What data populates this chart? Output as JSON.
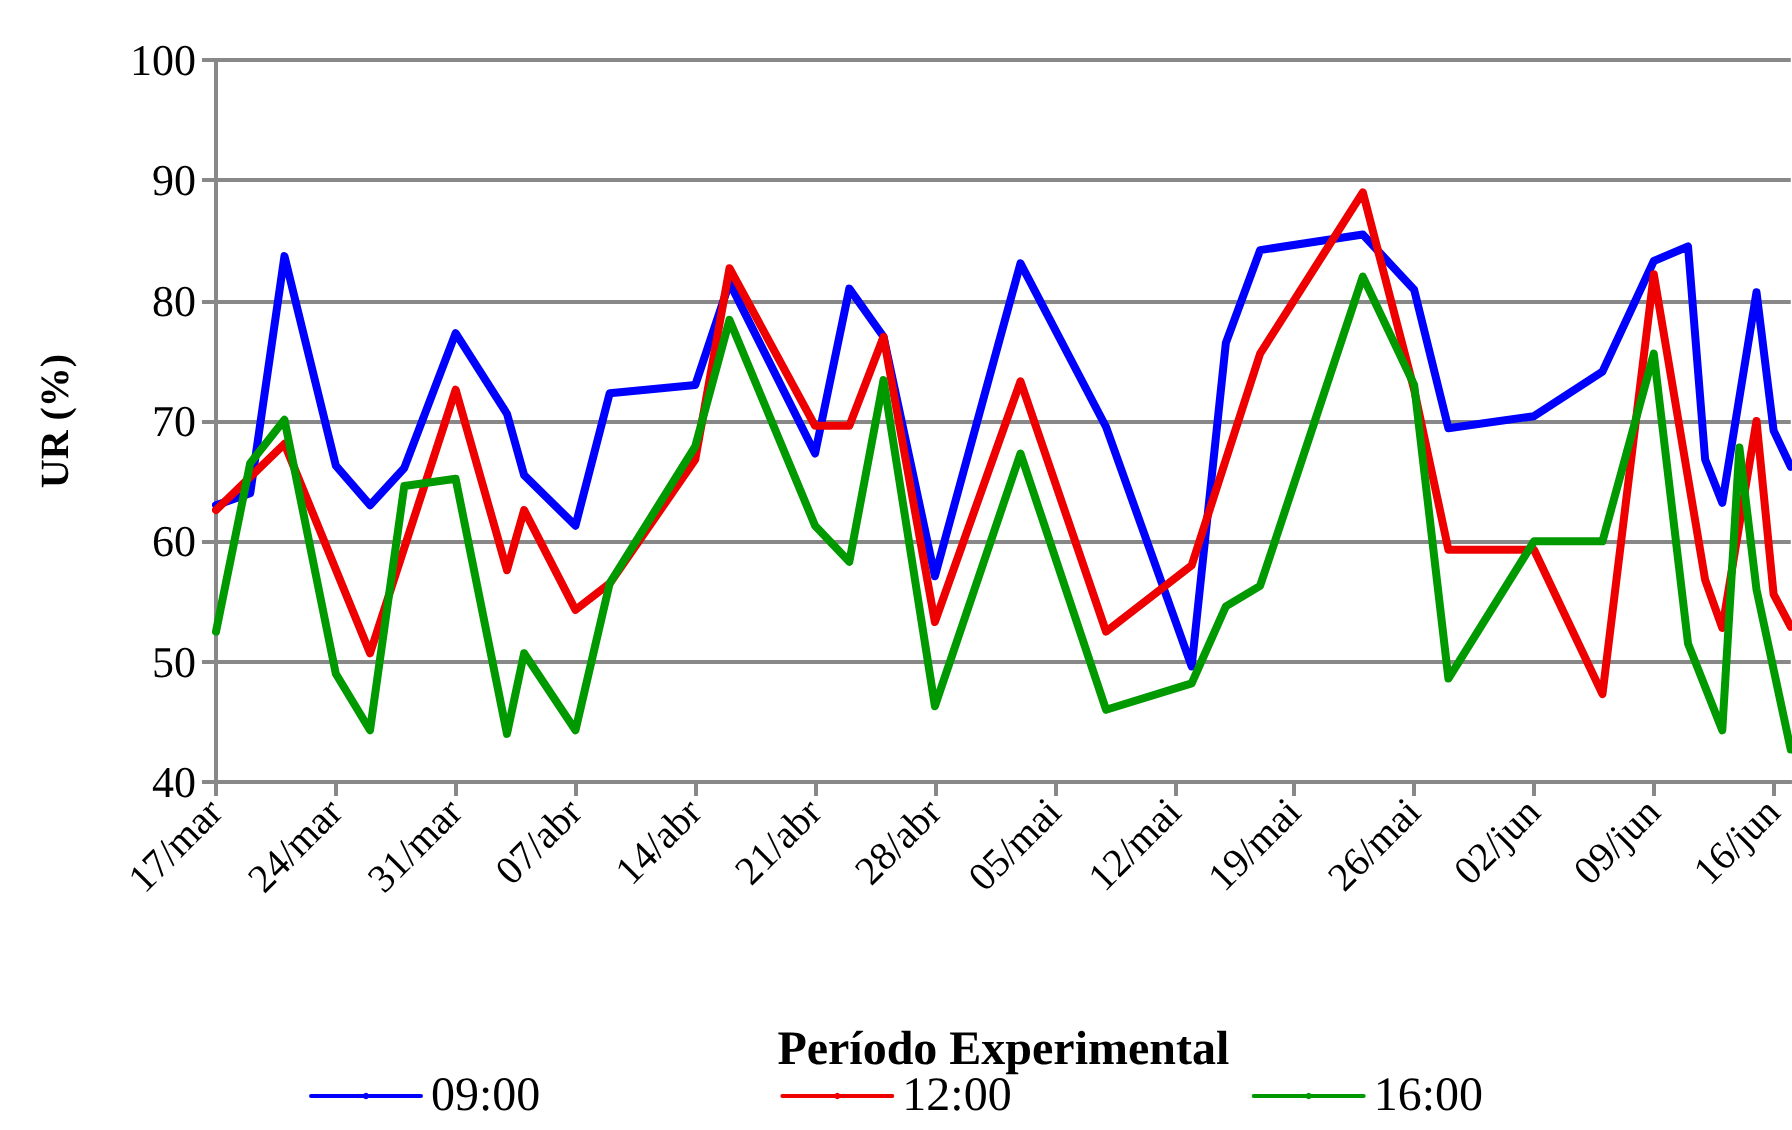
{
  "chart_data": {
    "type": "line",
    "xlabel": "Período Experimental",
    "ylabel": "UR (%)",
    "xlim": [
      "--03-17",
      "--06-17"
    ],
    "xticks": [
      {
        "value": "--03-17",
        "label": "17/mar"
      },
      {
        "value": "--03-24",
        "label": "24/mar"
      },
      {
        "value": "--03-31",
        "label": "31/mar"
      },
      {
        "value": "--04-07",
        "label": "07/abr"
      },
      {
        "value": "--04-14",
        "label": "14/abr"
      },
      {
        "value": "--04-21",
        "label": "21/abr"
      },
      {
        "value": "--04-28",
        "label": "28/abr"
      },
      {
        "value": "--05-05",
        "label": "05/mai"
      },
      {
        "value": "--05-12",
        "label": "12/mai"
      },
      {
        "value": "--05-19",
        "label": "19/mai"
      },
      {
        "value": "--05-26",
        "label": "26/mai"
      },
      {
        "value": "--06-02",
        "label": "02/jun"
      },
      {
        "value": "--06-09",
        "label": "09/jun"
      },
      {
        "value": "--06-16",
        "label": "16/jun"
      }
    ],
    "ylim": [
      40,
      100
    ],
    "yticks": [
      40,
      50,
      60,
      70,
      80,
      90,
      100
    ],
    "grid": "y",
    "legend": "bottom",
    "marker": "none",
    "line_style": "solid",
    "series": [
      {
        "name": "09:00",
        "color": "#0000ff",
        "x": [
          "--03-17",
          "--03-19",
          "--03-21",
          "--03-24",
          "--03-26",
          "--03-28",
          "--03-31",
          "--04-03",
          "--04-04",
          "--04-07",
          "--04-09",
          "--04-14",
          "--04-16",
          "--04-21",
          "--04-23",
          "--04-25",
          "--04-28",
          "--05-03",
          "--05-08",
          "--05-13",
          "--05-15",
          "--05-17",
          "--05-23",
          "--05-26",
          "--05-28",
          "--06-02",
          "--06-06",
          "--06-09",
          "--06-11",
          "--06-12",
          "--06-13",
          "--06-15",
          "--06-16",
          "--06-17"
        ],
        "values": [
          63,
          64,
          83.7,
          66.3,
          63,
          66.1,
          77.3,
          70.6,
          65.5,
          61.3,
          72.3,
          73,
          81.5,
          67.3,
          81,
          77,
          57.1,
          83.1,
          69.5,
          49.6,
          76.5,
          84.2,
          85.5,
          80.9,
          69.4,
          70.4,
          74.1,
          83.3,
          84.5,
          66.8,
          63.2,
          80.7,
          69.2,
          66.2
        ]
      },
      {
        "name": "12:00",
        "color": "#ee0000",
        "x": [
          "--03-17",
          "--03-21",
          "--03-26",
          "--03-31",
          "--04-03",
          "--04-04",
          "--04-07",
          "--04-09",
          "--04-14",
          "--04-16",
          "--04-21",
          "--04-23",
          "--04-25",
          "--04-28",
          "--05-03",
          "--05-08",
          "--05-13",
          "--05-17",
          "--05-23",
          "--05-26",
          "--05-28",
          "--06-02",
          "--06-06",
          "--06-09",
          "--06-12",
          "--06-13",
          "--06-15",
          "--06-16",
          "--06-17"
        ],
        "values": [
          62.6,
          68.1,
          50.7,
          72.6,
          57.6,
          62.6,
          54.3,
          56.5,
          66.8,
          82.7,
          69.6,
          69.6,
          77,
          53.3,
          73.3,
          52.5,
          58,
          75.6,
          89,
          72.6,
          59.3,
          59.3,
          47.3,
          82.2,
          56.8,
          52.8,
          70,
          55.6,
          52.9
        ]
      },
      {
        "name": "16:00",
        "color": "#009900",
        "x": [
          "--03-17",
          "--03-19",
          "--03-21",
          "--03-24",
          "--03-26",
          "--03-28",
          "--03-31",
          "--04-03",
          "--04-04",
          "--04-07",
          "--04-09",
          "--04-14",
          "--04-16",
          "--04-21",
          "--04-23",
          "--04-25",
          "--04-28",
          "--05-03",
          "--05-08",
          "--05-13",
          "--05-15",
          "--05-17",
          "--05-23",
          "--05-26",
          "--05-28",
          "--06-02",
          "--06-06",
          "--06-09",
          "--06-11",
          "--06-13",
          "--06-14",
          "--06-15",
          "--06-17"
        ],
        "values": [
          52.5,
          66.5,
          70.1,
          49,
          44.3,
          64.6,
          65.2,
          44,
          50.7,
          44.3,
          56.5,
          67.9,
          78.4,
          61.3,
          58.3,
          73.4,
          46.3,
          67.3,
          46,
          48.2,
          54.6,
          56.3,
          82,
          73,
          48.6,
          60,
          60,
          75.6,
          51.5,
          44.3,
          67.8,
          56,
          42.7
        ]
      }
    ]
  }
}
